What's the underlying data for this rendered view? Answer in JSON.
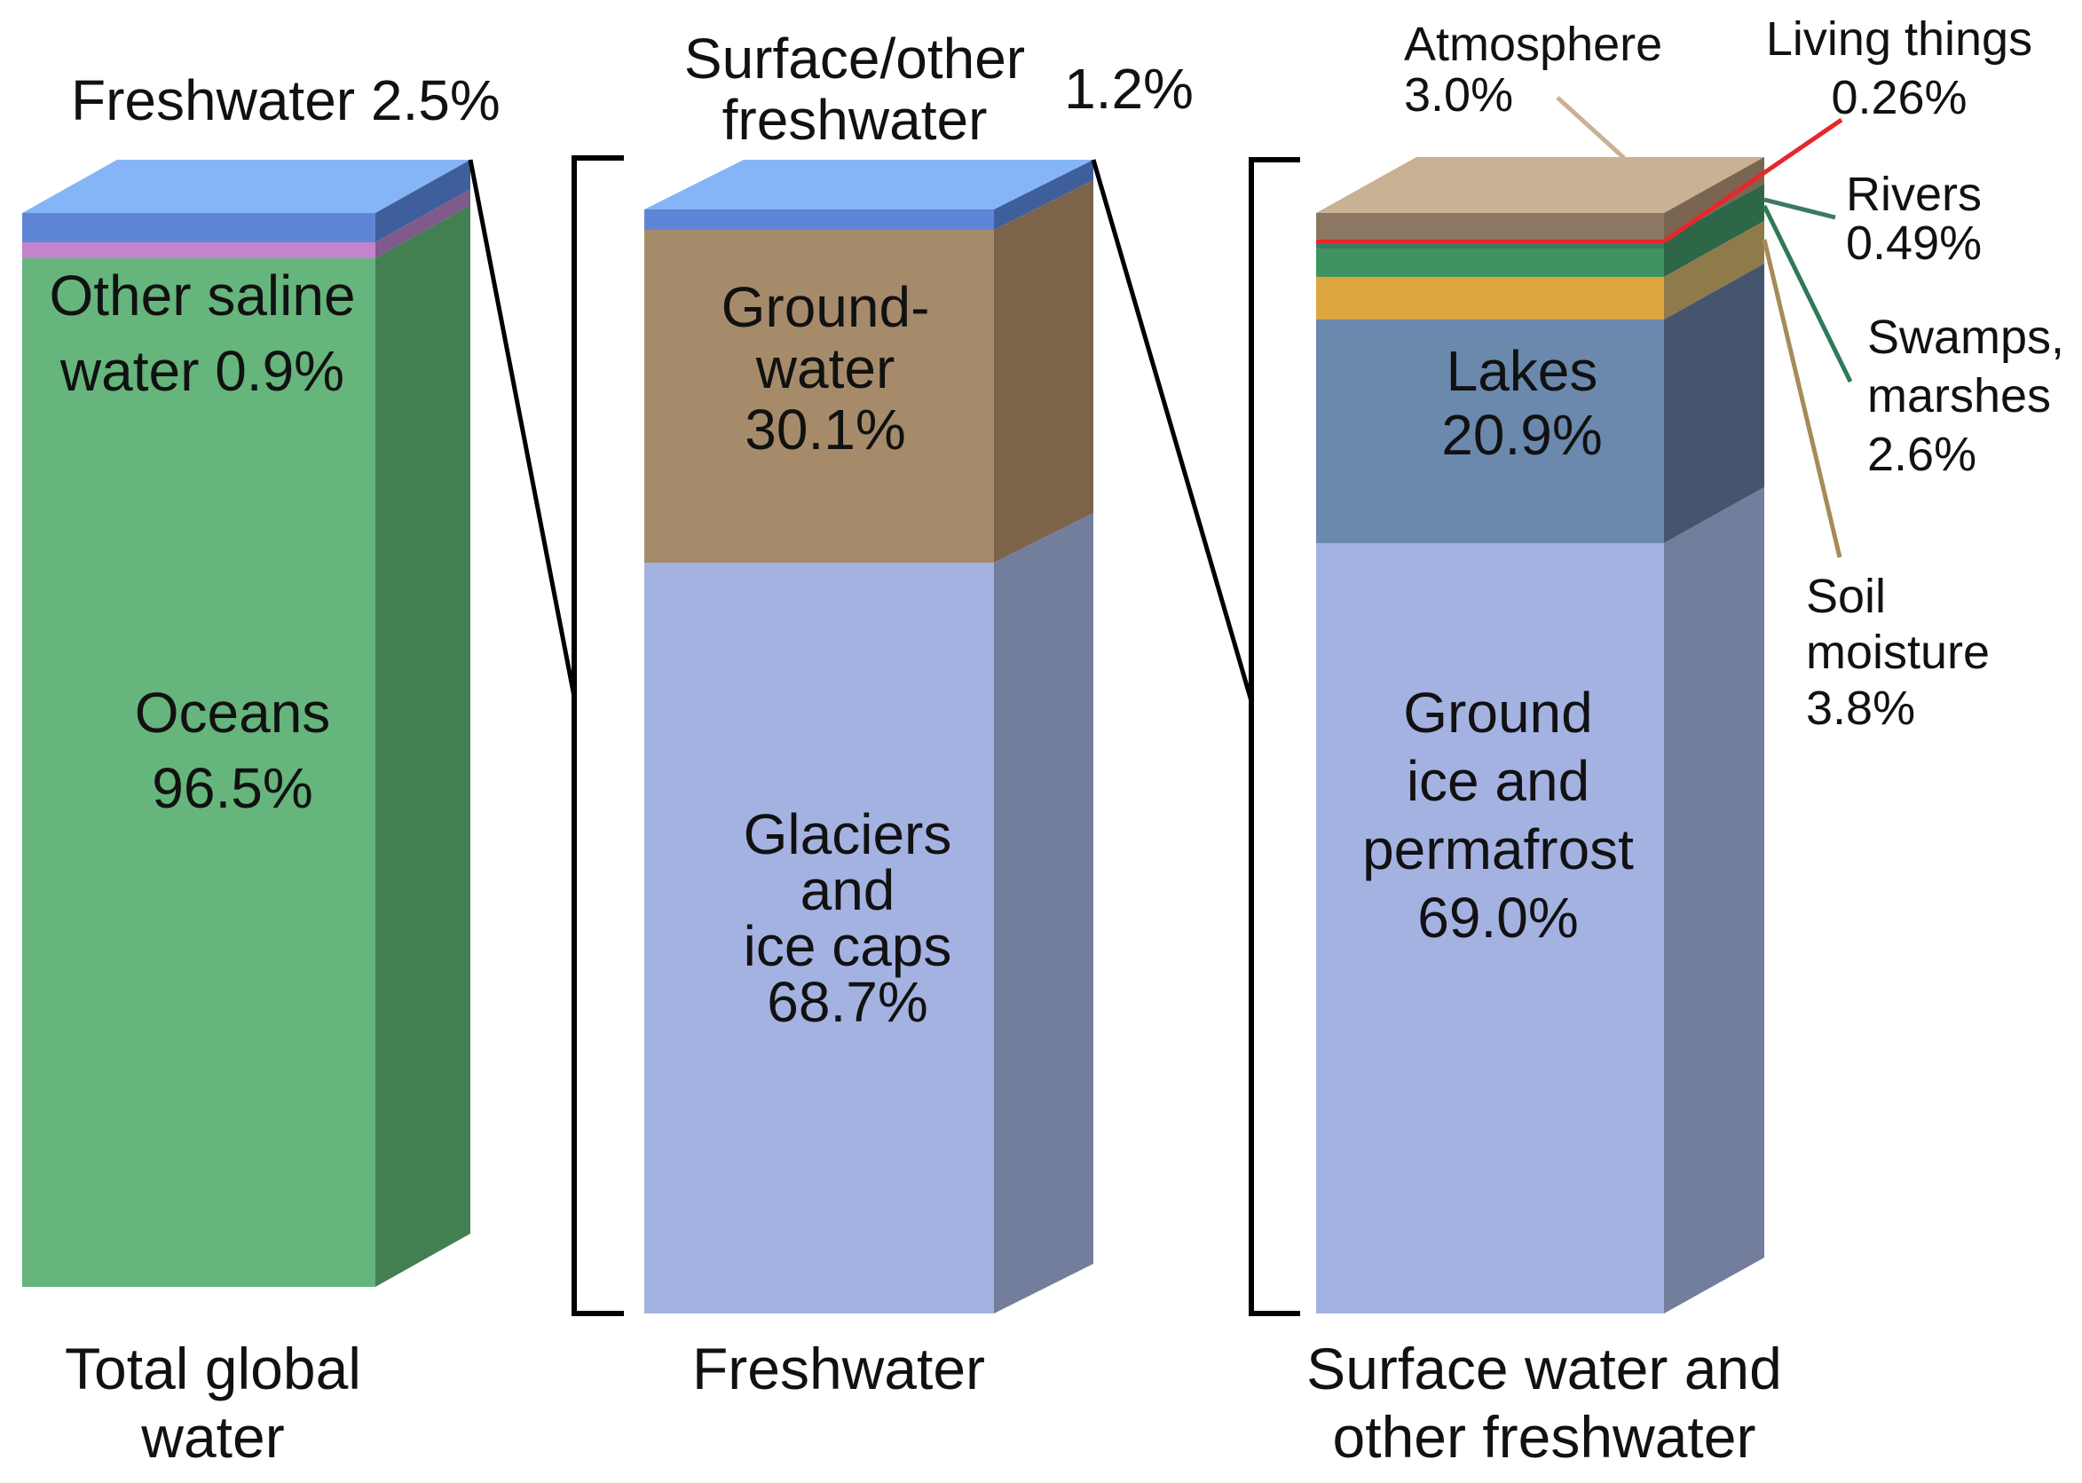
{
  "chart_data": [
    {
      "type": "bar",
      "subtype": "stacked-3d",
      "title": "Total global water",
      "categories": [
        "Total global water"
      ],
      "series": [
        {
          "name": "Oceans",
          "values": [
            96.5
          ],
          "color": "#66b57c"
        },
        {
          "name": "Other saline water",
          "values": [
            0.9
          ],
          "color": "#c284cc"
        },
        {
          "name": "Freshwater",
          "values": [
            2.5
          ],
          "color": "#5f85d6"
        }
      ],
      "ylim": [
        0,
        100
      ],
      "grid": false,
      "labels": {
        "oceans_name": "Oceans",
        "oceans_value": "96.5%",
        "saline_line1": "Other saline",
        "saline_line2": "water 0.9%",
        "freshwater_name": "Freshwater",
        "freshwater_value": "2.5%",
        "footer_line1": "Total global",
        "footer_line2": "water"
      }
    },
    {
      "type": "bar",
      "subtype": "stacked-3d",
      "title": "Freshwater",
      "categories": [
        "Freshwater"
      ],
      "series": [
        {
          "name": "Glaciers and ice caps",
          "values": [
            68.7
          ],
          "color": "#a4b2e2"
        },
        {
          "name": "Groundwater",
          "values": [
            30.1
          ],
          "color": "#a68b6b"
        },
        {
          "name": "Surface/other freshwater",
          "values": [
            1.2
          ],
          "color": "#5f85d6"
        }
      ],
      "ylim": [
        0,
        100
      ],
      "grid": false,
      "labels": {
        "glaciers_line1": "Glaciers",
        "glaciers_line2": "and",
        "glaciers_line3": "ice caps",
        "glaciers_value": "68.7%",
        "ground_line1": "Ground-",
        "ground_line2": "water",
        "ground_value": "30.1%",
        "surface_line1": "Surface/other",
        "surface_line2": "freshwater",
        "surface_value": "1.2%",
        "footer": "Freshwater"
      }
    },
    {
      "type": "bar",
      "subtype": "stacked-3d",
      "title": "Surface water and other freshwater",
      "categories": [
        "Surface water and other freshwater"
      ],
      "series": [
        {
          "name": "Ground ice and permafrost",
          "values": [
            69.0
          ],
          "color": "#a4b2e2"
        },
        {
          "name": "Lakes",
          "values": [
            20.9
          ],
          "color": "#6b88ad"
        },
        {
          "name": "Soil moisture",
          "values": [
            3.8
          ],
          "color": "#dca63f"
        },
        {
          "name": "Swamps, marshes",
          "values": [
            2.6
          ],
          "color": "#3e9460"
        },
        {
          "name": "Rivers",
          "values": [
            0.49
          ],
          "color": "#3c7a62"
        },
        {
          "name": "Living things",
          "values": [
            0.26
          ],
          "color": "#e8262b"
        },
        {
          "name": "Atmosphere",
          "values": [
            3.0
          ],
          "color": "#c9b193"
        }
      ],
      "ylim": [
        0,
        100
      ],
      "grid": false,
      "labels": {
        "permafrost_line1": "Ground",
        "permafrost_line2": "ice and",
        "permafrost_line3": "permafrost",
        "permafrost_value": "69.0%",
        "lakes_name": "Lakes",
        "lakes_value": "20.9%",
        "atmosphere_name": "Atmosphere",
        "atmosphere_value": "3.0%",
        "living_name": "Living things",
        "living_value": "0.26%",
        "rivers_name": "Rivers",
        "rivers_value": "0.49%",
        "swamps_line1": "Swamps,",
        "swamps_line2": "marshes",
        "swamps_value": "2.6%",
        "soil_line1": "Soil",
        "soil_line2": "moisture",
        "soil_value": "3.8%",
        "footer_line1": "Surface water and",
        "footer_line2": "other freshwater"
      }
    }
  ]
}
